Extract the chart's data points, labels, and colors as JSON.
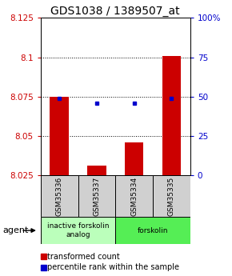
{
  "title": "GDS1038 / 1389507_at",
  "samples": [
    "GSM35336",
    "GSM35337",
    "GSM35334",
    "GSM35335"
  ],
  "red_values": [
    8.075,
    8.031,
    8.046,
    8.101
  ],
  "blue_values": [
    8.074,
    8.071,
    8.071,
    8.074
  ],
  "ylim_left": [
    8.025,
    8.125
  ],
  "ylim_right": [
    0,
    100
  ],
  "yticks_left": [
    8.025,
    8.05,
    8.075,
    8.1,
    8.125
  ],
  "yticks_right": [
    0,
    25,
    50,
    75,
    100
  ],
  "ytick_labels_left": [
    "8.025",
    "8.05",
    "8.075",
    "8.1",
    "8.125"
  ],
  "ytick_labels_right": [
    "0",
    "25",
    "50",
    "75",
    "100%"
  ],
  "grid_values": [
    8.05,
    8.075,
    8.1
  ],
  "bar_bottom": 8.025,
  "red_color": "#cc0000",
  "blue_color": "#0000cc",
  "agent_groups": [
    {
      "label": "inactive forskolin\nanalog",
      "color": "#bbffbb",
      "samples": [
        0,
        1
      ]
    },
    {
      "label": "forskolin",
      "color": "#55ee55",
      "samples": [
        2,
        3
      ]
    }
  ],
  "legend_red": "transformed count",
  "legend_blue": "percentile rank within the sample",
  "title_fontsize": 10,
  "tick_fontsize": 7.5,
  "label_color_left": "#cc0000",
  "label_color_right": "#0000cc",
  "sample_box_color": "#d0d0d0",
  "agent_label": "agent",
  "agent_fontsize": 8
}
